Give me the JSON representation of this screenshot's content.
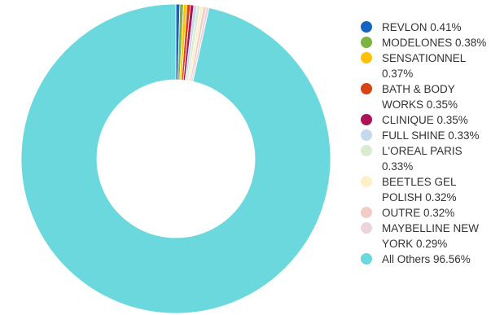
{
  "chart_data": {
    "type": "pie",
    "donut": true,
    "legend_position": "right",
    "series": [
      {
        "name": "REVLON",
        "value": 0.41,
        "label": "REVLON 0.41%",
        "color": "#1565c0"
      },
      {
        "name": "MODELONES",
        "value": 0.38,
        "label": "MODELONES 0.38%",
        "color": "#7cb342"
      },
      {
        "name": "SENSATIONNEL",
        "value": 0.37,
        "label": "SENSATIONNEL 0.37%",
        "color": "#ffc107"
      },
      {
        "name": "BATH & BODY WORKS",
        "value": 0.35,
        "label": "BATH & BODY WORKS 0.35%",
        "color": "#d84315"
      },
      {
        "name": "CLINIQUE",
        "value": 0.35,
        "label": "CLINIQUE 0.35%",
        "color": "#ad1457"
      },
      {
        "name": "FULL SHINE",
        "value": 0.33,
        "label": "FULL SHINE 0.33%",
        "color": "#c5d8ec"
      },
      {
        "name": "L'OREAL PARIS",
        "value": 0.33,
        "label": "L'OREAL PARIS 0.33%",
        "color": "#d9ecd2"
      },
      {
        "name": "BEETLES GEL POLISH",
        "value": 0.32,
        "label": "BEETLES GEL POLISH 0.32%",
        "color": "#fdf0c8"
      },
      {
        "name": "OUTRE",
        "value": 0.32,
        "label": "OUTRE 0.32%",
        "color": "#f2cdc8"
      },
      {
        "name": "MAYBELLINE NEW YORK",
        "value": 0.29,
        "label": "MAYBELLINE NEW YORK 0.29%",
        "color": "#ecd4dc"
      },
      {
        "name": "All Others",
        "value": 96.56,
        "label": "All Others 96.56%",
        "color": "#6ad8dc"
      }
    ]
  }
}
